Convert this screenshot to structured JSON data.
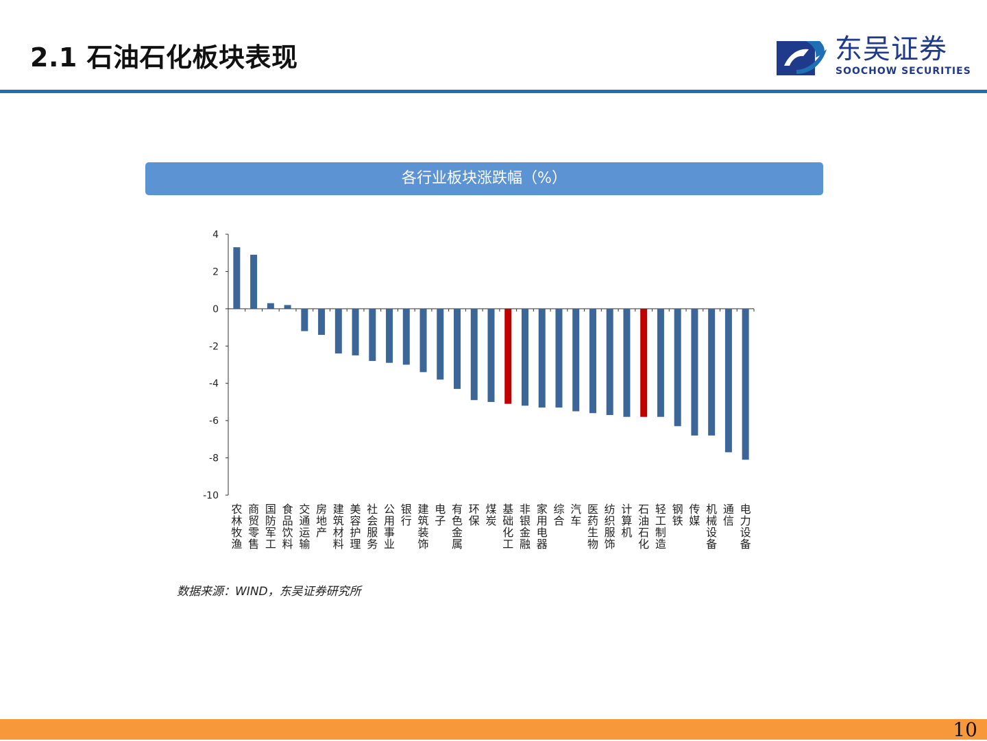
{
  "header": {
    "title": "2.1 石油石化板块表现",
    "logo_cn": "东吴证券",
    "logo_en": "SOOCHOW SECURITIES"
  },
  "banner": {
    "title": "各行业板块涨跌幅（%）"
  },
  "colors": {
    "bar": "#3d6698",
    "highlight": "#c00000",
    "axis": "#333333"
  },
  "chart_data": {
    "type": "bar",
    "title": "各行业板块涨跌幅（%）",
    "xlabel": "",
    "ylabel": "",
    "ylim": [
      -10,
      4
    ],
    "yticks": [
      4,
      2,
      0,
      -2,
      -4,
      -6,
      -8,
      -10
    ],
    "grid": false,
    "categories": [
      "农林牧渔",
      "商贸零售",
      "国防军工",
      "食品饮料",
      "交通运输",
      "房地产",
      "建筑材料",
      "美容护理",
      "社会服务",
      "公用事业",
      "银行",
      "建筑装饰",
      "电子",
      "有色金属",
      "环保",
      "煤炭",
      "基础化工",
      "非银金融",
      "家用电器",
      "综合",
      "汽车",
      "医药生物",
      "纺织服饰",
      "计算机",
      "石油石化",
      "轻工制造",
      "钢铁",
      "传媒",
      "机械设备",
      "通信",
      "电力设备"
    ],
    "values": [
      3.3,
      2.9,
      0.3,
      0.2,
      -1.2,
      -1.4,
      -2.4,
      -2.5,
      -2.8,
      -2.9,
      -3.0,
      -3.4,
      -3.8,
      -4.3,
      -4.9,
      -5.0,
      -5.1,
      -5.2,
      -5.3,
      -5.3,
      -5.5,
      -5.6,
      -5.7,
      -5.8,
      -5.8,
      -5.8,
      -6.3,
      -6.8,
      -6.8,
      -7.7,
      -8.1
    ],
    "highlight": [
      "基础化工",
      "石油石化"
    ]
  },
  "source": "数据来源：WIND，东吴证券研究所",
  "page_number": "10"
}
